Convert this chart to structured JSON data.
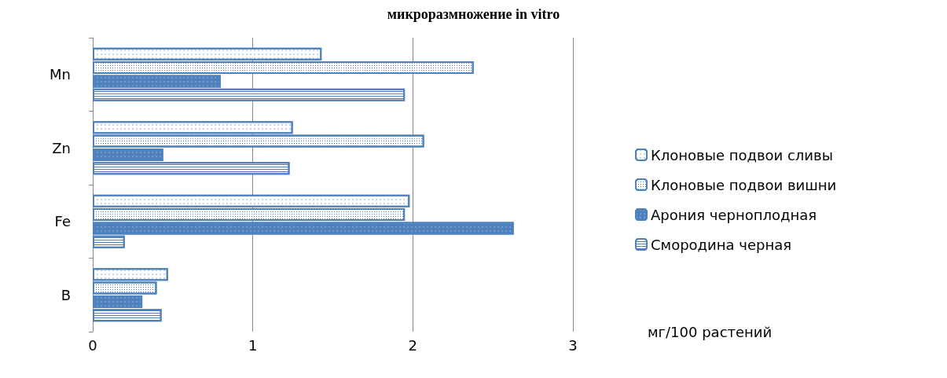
{
  "chart_data": {
    "type": "bar",
    "orientation": "horizontal",
    "title": "микроразмножение in vitro",
    "xlabel": "мг/100 растений",
    "categories": [
      "Mn",
      "Zn",
      "Fe",
      "B"
    ],
    "xlim": [
      0,
      3
    ],
    "xticks": [
      0,
      1,
      2,
      3
    ],
    "grid": "x",
    "legend": "right",
    "series": [
      {
        "name": "Клоновые подвои сливы",
        "color": "#4f81bd",
        "values": [
          1.43,
          1.25,
          1.98,
          0.47
        ]
      },
      {
        "name": "Клоновые подвои вишни",
        "color": "#4f81bd",
        "values": [
          2.38,
          2.07,
          1.95,
          0.4
        ]
      },
      {
        "name": "Арония черноплодная",
        "color": "#4f81bd",
        "values": [
          0.8,
          0.44,
          2.63,
          0.31
        ]
      },
      {
        "name": "Смородина черная",
        "color": "#4f81bd",
        "values": [
          1.95,
          1.23,
          0.2,
          0.43
        ]
      }
    ]
  }
}
